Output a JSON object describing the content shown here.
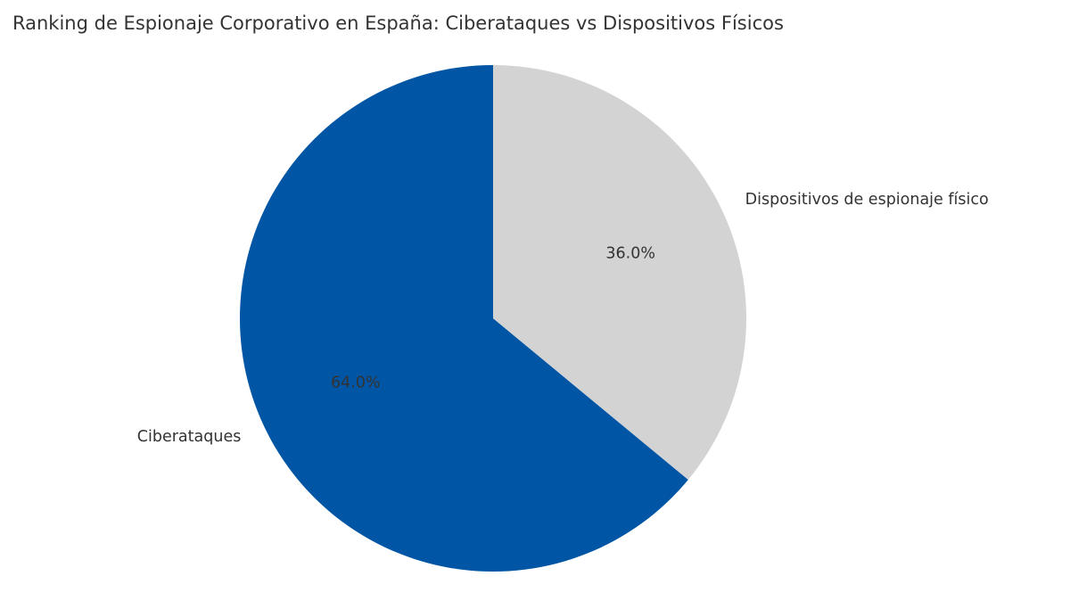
{
  "chart_data": {
    "type": "pie",
    "title": "Ranking de Espionaje Corporativo en España: Ciberataques vs Dispositivos Físicos",
    "categories": [
      "Ciberataques",
      "Dispositivos de espionaje físico"
    ],
    "values": [
      64,
      36
    ],
    "value_labels": [
      "64.0%",
      "36.0%"
    ],
    "colors": [
      "#0055a4",
      "#d3d3d3"
    ]
  }
}
